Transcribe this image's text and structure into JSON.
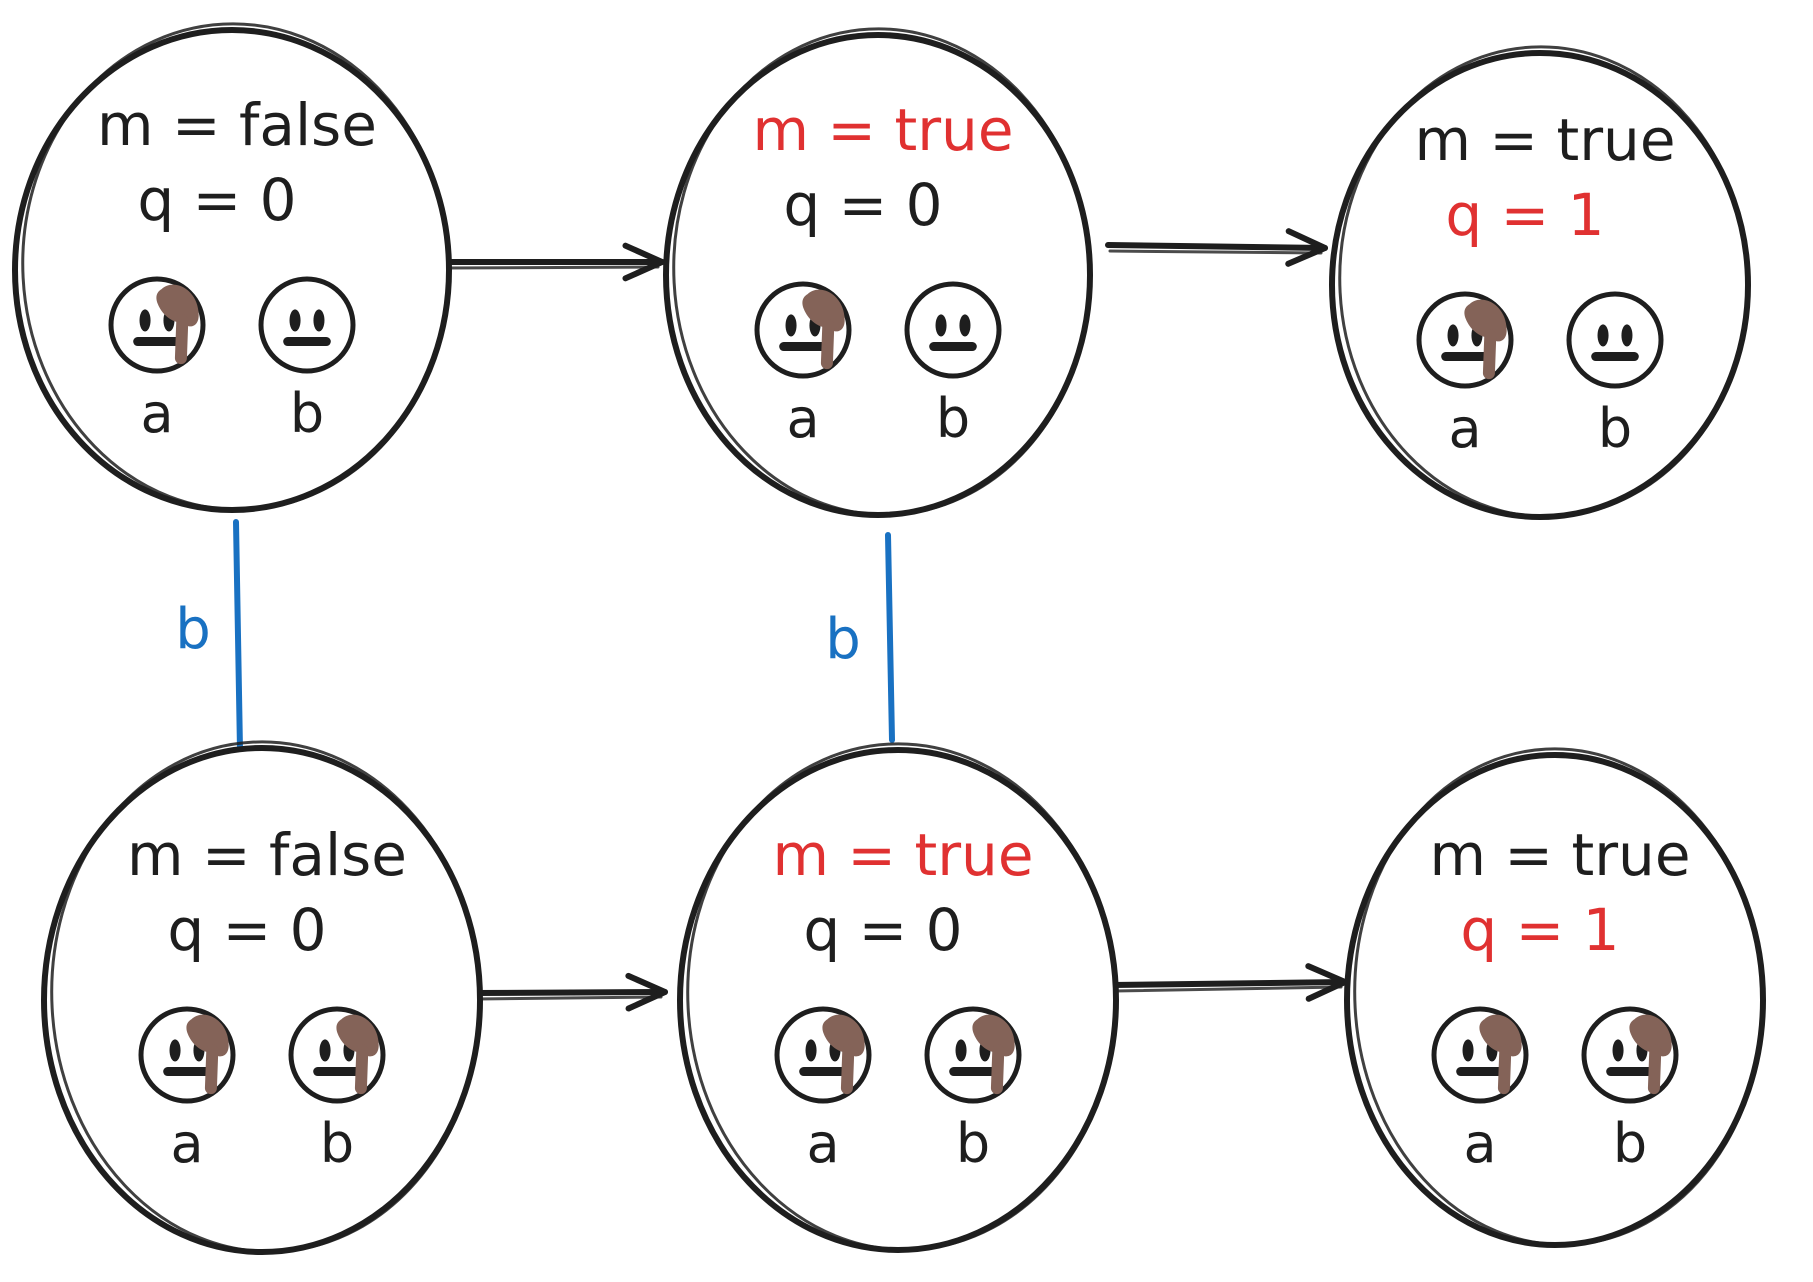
{
  "colors": {
    "ink": "#1e1e1e",
    "highlight": "#e03131",
    "relation": "#1971c2",
    "mud": "#846358",
    "background": "#ffffff"
  },
  "worlds": [
    {
      "id": "w1",
      "m_text": "m = false",
      "q_text": "q = 0",
      "m_highlight": false,
      "q_highlight": false,
      "agents": [
        {
          "label": "a",
          "muddy": true
        },
        {
          "label": "b",
          "muddy": false
        }
      ]
    },
    {
      "id": "w2",
      "m_text": "m = true",
      "q_text": "q = 0",
      "m_highlight": true,
      "q_highlight": false,
      "agents": [
        {
          "label": "a",
          "muddy": true
        },
        {
          "label": "b",
          "muddy": false
        }
      ]
    },
    {
      "id": "w3",
      "m_text": "m = true",
      "q_text": "q = 1",
      "m_highlight": false,
      "q_highlight": true,
      "agents": [
        {
          "label": "a",
          "muddy": true
        },
        {
          "label": "b",
          "muddy": false
        }
      ]
    },
    {
      "id": "w4",
      "m_text": "m = false",
      "q_text": "q = 0",
      "m_highlight": false,
      "q_highlight": false,
      "agents": [
        {
          "label": "a",
          "muddy": true
        },
        {
          "label": "b",
          "muddy": true
        }
      ]
    },
    {
      "id": "w5",
      "m_text": "m = true",
      "q_text": "q = 0",
      "m_highlight": true,
      "q_highlight": false,
      "agents": [
        {
          "label": "a",
          "muddy": true
        },
        {
          "label": "b",
          "muddy": true
        }
      ]
    },
    {
      "id": "w6",
      "m_text": "m = true",
      "q_text": "q = 1",
      "m_highlight": false,
      "q_highlight": true,
      "agents": [
        {
          "label": "a",
          "muddy": true
        },
        {
          "label": "b",
          "muddy": true
        }
      ]
    }
  ],
  "transitions": [
    {
      "from": "w1",
      "to": "w2"
    },
    {
      "from": "w2",
      "to": "w3"
    },
    {
      "from": "w4",
      "to": "w5"
    },
    {
      "from": "w5",
      "to": "w6"
    }
  ],
  "relations": [
    {
      "from": "w1",
      "to": "w4",
      "label": "b"
    },
    {
      "from": "w2",
      "to": "w5",
      "label": "b"
    }
  ]
}
